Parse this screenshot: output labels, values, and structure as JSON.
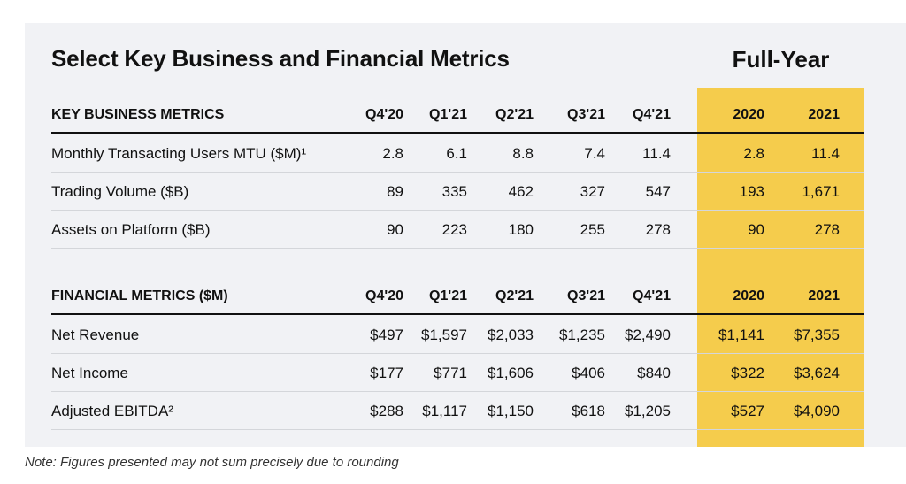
{
  "title": "Select Key Business and Financial Metrics",
  "full_year_title": "Full-Year",
  "business": {
    "header": {
      "label": "KEY BUSINESS METRICS",
      "cols": [
        "Q4'20",
        "Q1'21",
        "Q2'21",
        "Q3'21",
        "Q4'21",
        "2020",
        "2021"
      ]
    },
    "rows": [
      {
        "label": "Monthly Transacting Users MTU ($M)¹",
        "values": [
          "2.8",
          "6.1",
          "8.8",
          "7.4",
          "11.4",
          "2.8",
          "11.4"
        ]
      },
      {
        "label": "Trading Volume ($B)",
        "values": [
          "89",
          "335",
          "462",
          "327",
          "547",
          "193",
          "1,671"
        ]
      },
      {
        "label": "Assets on Platform ($B)",
        "values": [
          "90",
          "223",
          "180",
          "255",
          "278",
          "90",
          "278"
        ]
      }
    ]
  },
  "financial": {
    "header": {
      "label": "FINANCIAL METRICS ($M)",
      "cols": [
        "Q4'20",
        "Q1'21",
        "Q2'21",
        "Q3'21",
        "Q4'21",
        "2020",
        "2021"
      ]
    },
    "rows": [
      {
        "label": "Net Revenue",
        "values": [
          "$497",
          "$1,597",
          "$2,033",
          "$1,235",
          "$2,490",
          "$1,141",
          "$7,355"
        ]
      },
      {
        "label": "Net Income",
        "values": [
          "$177",
          "$771",
          "$1,606",
          "$406",
          "$840",
          "$322",
          "$3,624"
        ]
      },
      {
        "label": "Adjusted EBITDA²",
        "values": [
          "$288",
          "$1,117",
          "$1,150",
          "$618",
          "$1,205",
          "$527",
          "$4,090"
        ]
      }
    ]
  },
  "note": "Note: Figures presented may not sum precisely due to rounding",
  "colors": {
    "panel": "#f1f2f5",
    "highlight": "#f5cc4c",
    "text": "#111111",
    "rule": "#d4d6da"
  }
}
